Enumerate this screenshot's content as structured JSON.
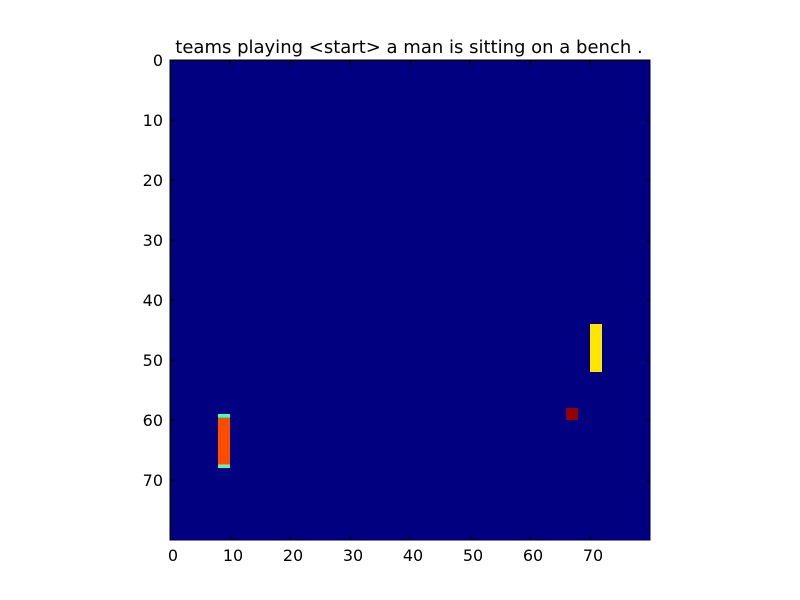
{
  "chart_data": {
    "type": "heatmap",
    "title": "teams playing <start> a man is sitting on a bench .",
    "xlabel": "",
    "ylabel": "",
    "grid_size": [
      80,
      80
    ],
    "xlim": [
      0,
      80
    ],
    "ylim": [
      80,
      0
    ],
    "x_ticks": [
      0,
      10,
      20,
      30,
      40,
      50,
      60,
      70
    ],
    "y_ticks": [
      0,
      10,
      20,
      30,
      40,
      50,
      60,
      70
    ],
    "y_axis_inverted": true,
    "grid": false,
    "colormap": "jet",
    "background_value": 0.0,
    "colors": {
      "background": "#00007f",
      "axes_frame": "#000000"
    },
    "regions": [
      {
        "x": [
          8,
          9
        ],
        "y": [
          59,
          67
        ],
        "value": 0.8,
        "edge_value": 0.45
      },
      {
        "x": [
          70,
          71
        ],
        "y": [
          44,
          51
        ],
        "value": 0.65
      },
      {
        "x": [
          66,
          67
        ],
        "y": [
          58,
          59
        ],
        "value": 0.98
      }
    ]
  }
}
